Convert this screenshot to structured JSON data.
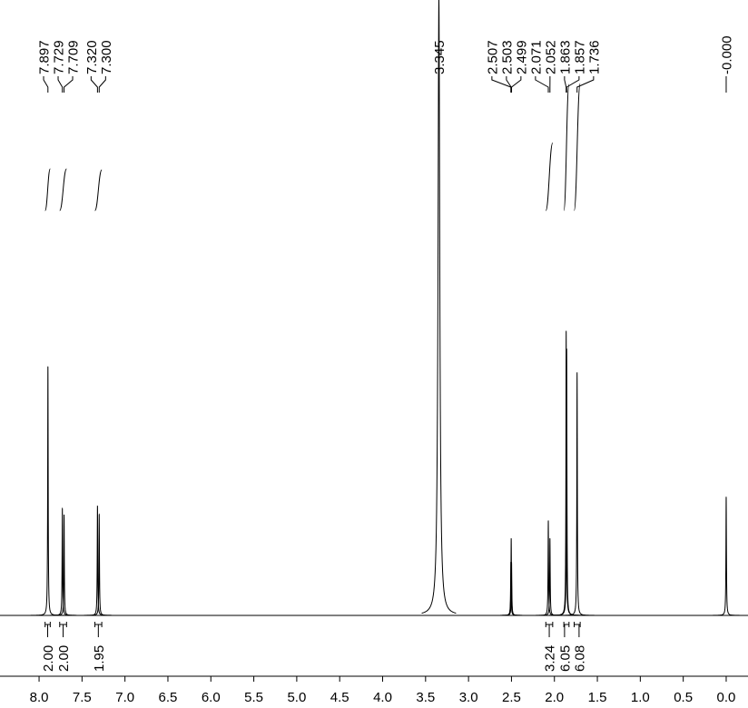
{
  "chart_data": {
    "type": "nmr",
    "xlim": [
      8.455,
      -0.254
    ],
    "ylim": [
      0,
      1
    ],
    "xticks": [
      {
        "value": 8,
        "label": "8.0"
      },
      {
        "value": 7.5,
        "label": "7.5"
      },
      {
        "value": 7,
        "label": "7.0"
      },
      {
        "value": 6.5,
        "label": "6.5"
      },
      {
        "value": 6,
        "label": "6.0"
      },
      {
        "value": 5.5,
        "label": "5.5"
      },
      {
        "value": 5,
        "label": "5.0"
      },
      {
        "value": 4.5,
        "label": "4.5"
      },
      {
        "value": 4,
        "label": "4.0"
      },
      {
        "value": 3.5,
        "label": "3.5"
      },
      {
        "value": 3,
        "label": "3.0"
      },
      {
        "value": 2.5,
        "label": "2.5"
      },
      {
        "value": 2,
        "label": "2.0"
      },
      {
        "value": 1.5,
        "label": "1.5"
      },
      {
        "value": 1,
        "label": "1.0"
      },
      {
        "value": 0.5,
        "label": "0.5"
      },
      {
        "value": 0,
        "label": "0.0"
      }
    ],
    "color": "#000000",
    "peaks": {
      "ppm": [
        7.897,
        7.729,
        7.709,
        7.32,
        7.3,
        3.345,
        2.507,
        2.503,
        2.499,
        2.071,
        2.052,
        1.863,
        1.857,
        1.736,
        0
      ],
      "heights": [
        0.42,
        0.18,
        0.17,
        0.185,
        0.17,
        1.04,
        0.09,
        0.13,
        0.09,
        0.16,
        0.13,
        0.48,
        0.45,
        0.41,
        0.2
      ]
    },
    "peak_labels": [
      {
        "value": 7.897,
        "label": "7.897"
      },
      {
        "value": 7.729,
        "label": "7.729"
      },
      {
        "value": 7.709,
        "label": "7.709"
      },
      {
        "value": 7.32,
        "label": "7.320"
      },
      {
        "value": 7.3,
        "label": "7.300"
      },
      {
        "value": 3.345,
        "label": "3.345"
      },
      {
        "value": 2.507,
        "label": "2.507"
      },
      {
        "value": 2.503,
        "label": "2.503"
      },
      {
        "value": 2.499,
        "label": "2.499"
      },
      {
        "value": 2.071,
        "label": "2.071"
      },
      {
        "value": 2.052,
        "label": "2.052"
      },
      {
        "value": 1.863,
        "label": "1.863"
      },
      {
        "value": 1.857,
        "label": "1.857"
      },
      {
        "value": 1.736,
        "label": "1.736"
      },
      {
        "value": 0,
        "label": "-0.000"
      }
    ],
    "integrals": [
      {
        "range": [
          7.93,
          7.87
        ],
        "value": 2,
        "label": "2.00"
      },
      {
        "range": [
          7.76,
          7.68
        ],
        "value": 2,
        "label": "2.00"
      },
      {
        "range": [
          7.35,
          7.27
        ],
        "value": 1.95,
        "label": "1.95"
      },
      {
        "range": [
          2.1,
          2.02
        ],
        "value": 3.24,
        "label": "3.24"
      },
      {
        "range": [
          1.89,
          1.83
        ],
        "value": 6.05,
        "label": "6.05"
      },
      {
        "range": [
          1.77,
          1.7
        ],
        "value": 6.08,
        "label": "6.08"
      }
    ]
  }
}
